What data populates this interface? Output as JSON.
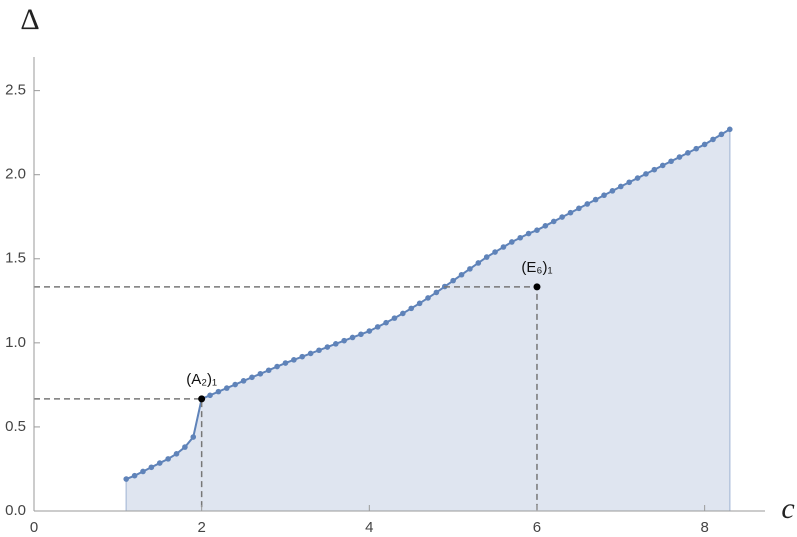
{
  "chart_data": {
    "type": "area-line",
    "x_label": "c",
    "y_label": "Δ",
    "x": [
      1.1,
      1.2,
      1.3,
      1.4,
      1.5,
      1.6,
      1.7,
      1.8,
      1.9,
      2.0,
      2.1,
      2.2,
      2.3,
      2.4,
      2.5,
      2.6,
      2.7,
      2.8,
      2.9,
      3.0,
      3.1,
      3.2,
      3.3,
      3.4,
      3.5,
      3.6,
      3.7,
      3.8,
      3.9,
      4.0,
      4.1,
      4.2,
      4.3,
      4.4,
      4.5,
      4.6,
      4.7,
      4.8,
      4.9,
      5.0,
      5.1,
      5.2,
      5.3,
      5.4,
      5.5,
      5.6,
      5.7,
      5.8,
      5.9,
      6.0,
      6.1,
      6.2,
      6.3,
      6.4,
      6.5,
      6.6,
      6.7,
      6.8,
      6.9,
      7.0,
      7.1,
      7.2,
      7.3,
      7.4,
      7.5,
      7.6,
      7.7,
      7.8,
      7.9,
      8.0,
      8.1,
      8.2,
      8.3
    ],
    "values": [
      0.19,
      0.21,
      0.235,
      0.26,
      0.285,
      0.31,
      0.34,
      0.38,
      0.44,
      0.667,
      0.688,
      0.71,
      0.731,
      0.752,
      0.774,
      0.795,
      0.816,
      0.837,
      0.859,
      0.88,
      0.899,
      0.918,
      0.937,
      0.956,
      0.975,
      0.994,
      1.013,
      1.032,
      1.051,
      1.07,
      1.095,
      1.12,
      1.147,
      1.175,
      1.205,
      1.235,
      1.267,
      1.3,
      1.335,
      1.37,
      1.405,
      1.44,
      1.475,
      1.51,
      1.54,
      1.57,
      1.6,
      1.625,
      1.65,
      1.67,
      1.696,
      1.722,
      1.748,
      1.774,
      1.8,
      1.826,
      1.852,
      1.878,
      1.904,
      1.93,
      1.955,
      1.98,
      2.005,
      2.03,
      2.055,
      2.08,
      2.105,
      2.13,
      2.155,
      2.18,
      2.21,
      2.24,
      2.27
    ],
    "color": "#5f83b9",
    "fill_color": "#dfe5f0",
    "xlim": [
      0,
      8.72
    ],
    "ylim": [
      0,
      2.7
    ],
    "xticks": [
      0,
      2,
      4,
      6,
      8
    ],
    "yticks": [
      {
        "value": 0,
        "label": "0.0"
      },
      0.5,
      {
        "value": 1,
        "label": "1.0"
      },
      1.5,
      {
        "value": 2,
        "label": "2.0"
      },
      2.5
    ],
    "annotations": [
      {
        "label": "(A₂)₁",
        "x": 2,
        "y": 0.667
      },
      {
        "label": "(E₆)₁",
        "x": 6,
        "y": 1.333
      }
    ]
  }
}
